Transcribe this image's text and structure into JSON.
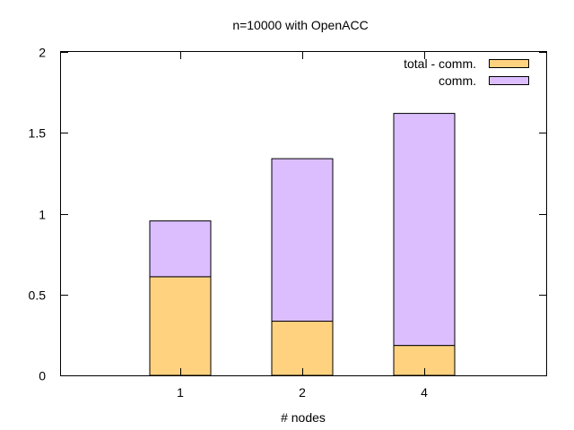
{
  "chart_data": {
    "type": "bar",
    "stacked": true,
    "title": "n=10000 with OpenACC",
    "xlabel": "# nodes",
    "ylabel": "",
    "categories": [
      "1",
      "2",
      "4"
    ],
    "ylim": [
      0,
      2
    ],
    "yticks": [
      "0",
      "0.5",
      "1",
      "1.5",
      "2"
    ],
    "grid": false,
    "legend_position": "top-right",
    "series": [
      {
        "name": "total - comm.",
        "values": [
          0.61,
          0.335,
          0.185
        ],
        "color": "#ffd280"
      },
      {
        "name": "comm.",
        "values": [
          0.345,
          1.005,
          1.435
        ],
        "color": "#dcbeff"
      }
    ]
  }
}
